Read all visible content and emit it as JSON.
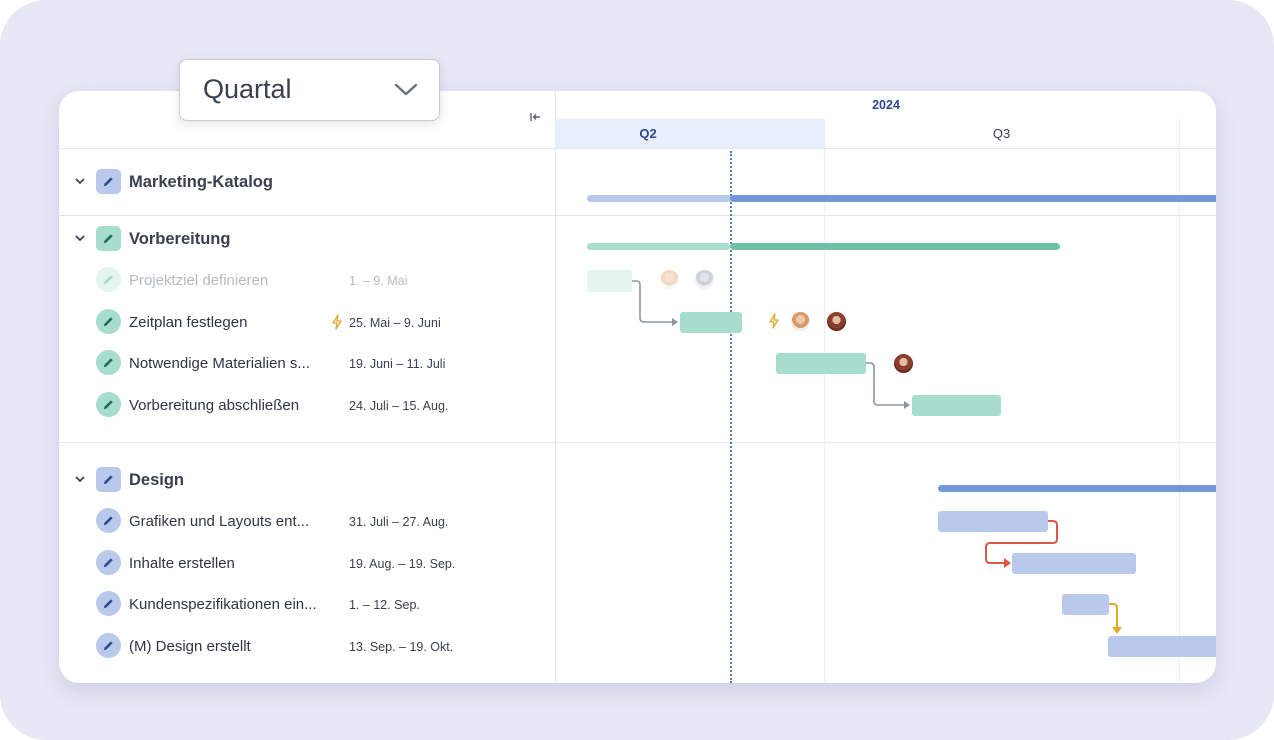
{
  "zoom_select": {
    "value": "Quartal",
    "icon": "chevron-down-icon"
  },
  "timeline_header": {
    "year": "2024",
    "quarters": [
      "Q2",
      "Q3"
    ],
    "highlighted_quarter": "Q2"
  },
  "colors": {
    "blue_bar": "#b8c9ec",
    "blue_summary": "#7397d8",
    "green_bar": "#a7ddcc",
    "green_summary": "#6fc0a6",
    "today_line": "#4f7cc7",
    "dependency_gray": "#8e95a4",
    "dependency_red": "#d9584a",
    "dependency_yellow": "#e0a92a"
  },
  "rows": {
    "marketing": {
      "label": "Marketing-Katalog"
    },
    "vorbereitung": {
      "label": "Vorbereitung"
    },
    "task1": {
      "label": "Projektziel definieren",
      "dates": "1. – 9. Mai",
      "state": "completed"
    },
    "task2": {
      "label": "Zeitplan festlegen",
      "dates": "25. Mai – 9. Juni",
      "icon": "bolt-icon"
    },
    "task3": {
      "label": "Notwendige Materialien s...",
      "dates": "19. Juni – 11. Juli"
    },
    "task4": {
      "label": "Vorbereitung abschließen",
      "dates": "24. Juli – 15. Aug."
    },
    "design": {
      "label": "Design"
    },
    "task5": {
      "label": "Grafiken und Layouts ent...",
      "dates": "31. Juli – 27. Aug."
    },
    "task6": {
      "label": "Inhalte erstellen",
      "dates": "19. Aug. – 19. Sep."
    },
    "task7": {
      "label": "Kundenspezifikationen ein...",
      "dates": "1. – 12. Sep."
    },
    "task8": {
      "label": "(M) Design erstellt",
      "dates": "13. Sep. – 19. Okt."
    }
  }
}
